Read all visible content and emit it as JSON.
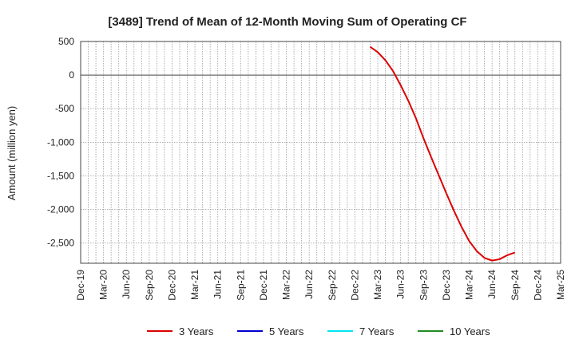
{
  "chart_data": {
    "type": "line",
    "title": "[3489]  Trend of Mean of 12-Month Moving Sum of Operating CF",
    "xlabel": "",
    "ylabel": "Amount (million yen)",
    "ylim": [
      -2800,
      500
    ],
    "yticks": [
      500,
      0,
      -500,
      -1000,
      -1500,
      -2000,
      -2500
    ],
    "ytick_labels": [
      "500",
      "0",
      "-500",
      "-1,000",
      "-1,500",
      "-2,000",
      "-2,500"
    ],
    "xticks": [
      "Dec-19",
      "Mar-20",
      "Jun-20",
      "Sep-20",
      "Dec-20",
      "Mar-21",
      "Jun-21",
      "Sep-21",
      "Dec-21",
      "Mar-22",
      "Jun-22",
      "Sep-22",
      "Dec-22",
      "Mar-23",
      "Jun-23",
      "Sep-23",
      "Dec-23",
      "Mar-24",
      "Jun-24",
      "Sep-24",
      "Dec-24",
      "Mar-25"
    ],
    "grid": true,
    "zero_line": true,
    "legend_position": "bottom",
    "series": [
      {
        "name": "3 Years",
        "color": "#dd0000",
        "x": [
          "Feb-23",
          "Mar-23",
          "Apr-23",
          "May-23",
          "Jun-23",
          "Jul-23",
          "Aug-23",
          "Sep-23",
          "Oct-23",
          "Nov-23",
          "Dec-23",
          "Jan-24",
          "Feb-24",
          "Mar-24",
          "Apr-24",
          "May-24",
          "Jun-24",
          "Jul-24",
          "Aug-24",
          "Sep-24"
        ],
        "values": [
          420,
          340,
          220,
          60,
          -150,
          -380,
          -640,
          -940,
          -1220,
          -1490,
          -1760,
          -2020,
          -2260,
          -2470,
          -2620,
          -2720,
          -2760,
          -2740,
          -2680,
          -2640
        ]
      },
      {
        "name": "5 Years",
        "color": "#0000cc",
        "x": [],
        "values": []
      },
      {
        "name": "7 Years",
        "color": "#00e5ee",
        "x": [],
        "values": []
      },
      {
        "name": "10 Years",
        "color": "#228b22",
        "x": [],
        "values": []
      }
    ]
  }
}
